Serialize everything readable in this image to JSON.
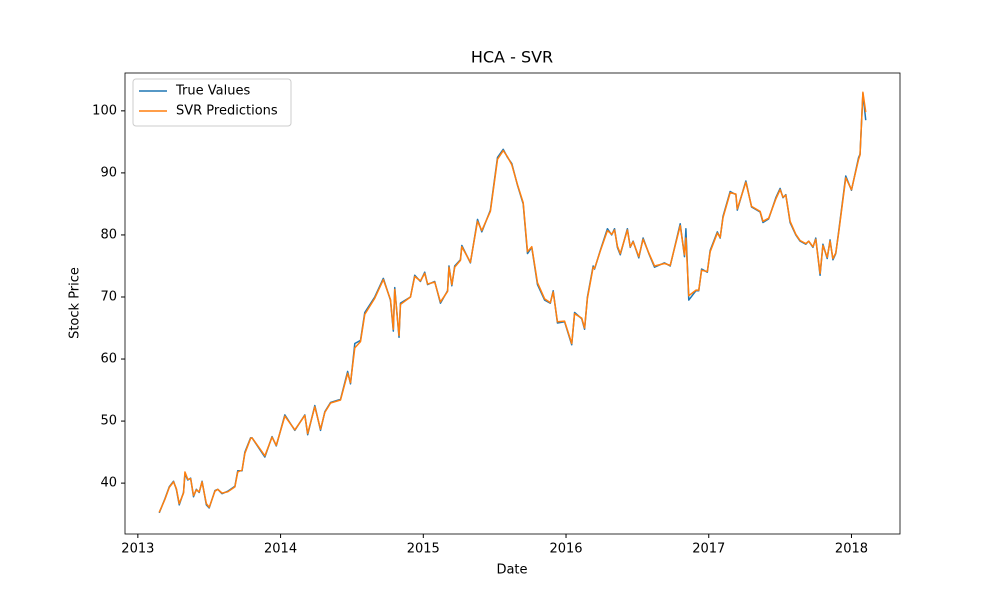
{
  "chart_data": {
    "type": "line",
    "title": "HCA - SVR",
    "x_label": "Date",
    "y_label": "Stock Price",
    "x": [
      2013.15,
      2013.19,
      2013.22,
      2013.25,
      2013.27,
      2013.29,
      2013.32,
      2013.33,
      2013.35,
      2013.37,
      2013.39,
      2013.41,
      2013.43,
      2013.45,
      2013.48,
      2013.5,
      2013.54,
      2013.56,
      2013.59,
      2013.63,
      2013.68,
      2013.7,
      2013.73,
      2013.75,
      2013.79,
      2013.8,
      2013.89,
      2013.94,
      2013.97,
      2014.03,
      2014.1,
      2014.17,
      2014.19,
      2014.24,
      2014.28,
      2014.31,
      2014.35,
      2014.42,
      2014.47,
      2014.49,
      2014.52,
      2014.56,
      2014.59,
      2014.66,
      2014.72,
      2014.77,
      2014.79,
      2014.8,
      2014.83,
      2014.84,
      2014.91,
      2014.94,
      2014.98,
      2015.01,
      2015.03,
      2015.08,
      2015.12,
      2015.17,
      2015.18,
      2015.2,
      2015.22,
      2015.26,
      2015.27,
      2015.33,
      2015.38,
      2015.41,
      2015.47,
      2015.52,
      2015.56,
      2015.59,
      2015.62,
      2015.66,
      2015.7,
      2015.73,
      2015.76,
      2015.8,
      2015.85,
      2015.89,
      2015.91,
      2015.94,
      2015.99,
      2016.04,
      2016.06,
      2016.11,
      2016.13,
      2016.15,
      2016.19,
      2016.2,
      2016.24,
      2016.29,
      2016.32,
      2016.34,
      2016.36,
      2016.38,
      2016.43,
      2016.45,
      2016.47,
      2016.51,
      2016.54,
      2016.58,
      2016.62,
      2016.69,
      2016.73,
      2016.8,
      2016.83,
      2016.84,
      2016.86,
      2016.91,
      2016.93,
      2016.95,
      2016.99,
      2017.01,
      2017.06,
      2017.08,
      2017.1,
      2017.15,
      2017.19,
      2017.2,
      2017.26,
      2017.3,
      2017.36,
      2017.38,
      2017.42,
      2017.47,
      2017.5,
      2017.52,
      2017.54,
      2017.57,
      2017.61,
      2017.64,
      2017.68,
      2017.7,
      2017.73,
      2017.75,
      2017.78,
      2017.8,
      2017.83,
      2017.85,
      2017.87,
      2017.89,
      2017.91,
      2017.96,
      2018.0,
      2018.05,
      2018.06,
      2018.08,
      2018.1
    ],
    "series": [
      {
        "name": "True Values",
        "color": "#1f77b4",
        "values": [
          35.2,
          37.5,
          39.4,
          40.3,
          39,
          36.5,
          38.5,
          41.5,
          40.5,
          40.8,
          37.8,
          39,
          38.5,
          40.3,
          36.5,
          36,
          38.8,
          39,
          38.3,
          38.7,
          39.5,
          42,
          42,
          45,
          47.3,
          47.3,
          44.2,
          47.5,
          46,
          51,
          48.5,
          51,
          47.8,
          52.5,
          48.5,
          51.5,
          53,
          53.5,
          58,
          56,
          62.5,
          63,
          67.5,
          70,
          73,
          69.5,
          64.5,
          71.5,
          63.5,
          69,
          70,
          73.5,
          72.5,
          74,
          72,
          72.5,
          69,
          71,
          75,
          71.8,
          75,
          76,
          78.3,
          75.5,
          82.5,
          80.5,
          84,
          92.5,
          93.8,
          92.5,
          91.5,
          88,
          85,
          77,
          78,
          72,
          69.5,
          69,
          71,
          65.8,
          66,
          62.3,
          67.5,
          66.5,
          64.8,
          70,
          75,
          74.5,
          77.5,
          81,
          80,
          81,
          78,
          76.8,
          81,
          78,
          79,
          76.3,
          79.5,
          77,
          74.8,
          75.5,
          75,
          81.8,
          76.5,
          81,
          69.5,
          71,
          71,
          74.5,
          74,
          77.5,
          80.5,
          79.5,
          83,
          87,
          86.5,
          84,
          88.7,
          84.5,
          83.7,
          82,
          82.6,
          86,
          87.5,
          86,
          86.5,
          82,
          80,
          79,
          78.5,
          79,
          78,
          79.5,
          73.5,
          78.5,
          76.2,
          79.2,
          76,
          77,
          80.5,
          89.5,
          87.2,
          92.5,
          93,
          102.8,
          98.5
        ]
      },
      {
        "name": "SVR Predictions",
        "color": "#ff7f0e",
        "values": [
          35.3,
          37.4,
          39.3,
          40.2,
          39.1,
          36.7,
          38.4,
          41.8,
          40.6,
          40.7,
          38,
          38.9,
          38.6,
          40.2,
          36.7,
          36.1,
          38.7,
          39,
          38.4,
          38.6,
          39.4,
          41.8,
          42.1,
          44.8,
          47.2,
          47.3,
          44.4,
          47.4,
          46.1,
          50.8,
          48.6,
          50.9,
          48,
          52.3,
          48.7,
          51.4,
          52.9,
          53.4,
          57.7,
          56.2,
          61.8,
          62.8,
          67.2,
          69.8,
          72.8,
          69.6,
          64.8,
          71.2,
          63.8,
          68.8,
          70,
          73.3,
          72.6,
          73.8,
          72.1,
          72.4,
          69.2,
          70.9,
          74.8,
          72,
          74.8,
          75.9,
          78.1,
          75.6,
          82.2,
          80.7,
          83.8,
          92.2,
          93.6,
          92.6,
          91.3,
          88.1,
          85.2,
          77.3,
          78.1,
          72.3,
          69.7,
          69.1,
          70.8,
          66,
          66.1,
          62.5,
          67.3,
          66.6,
          65,
          69.8,
          74.8,
          74.6,
          77.4,
          80.7,
          80.1,
          80.8,
          78.2,
          77,
          80.8,
          78.1,
          78.9,
          76.5,
          79.3,
          77.1,
          75,
          75.4,
          75.1,
          81.5,
          76.8,
          79.5,
          70.2,
          71.1,
          71.1,
          74.3,
          74.1,
          77.3,
          80.3,
          79.6,
          82.8,
          86.8,
          86.6,
          84.2,
          88.5,
          84.6,
          83.8,
          82.2,
          82.7,
          85.8,
          87.3,
          86.1,
          86.4,
          82.2,
          80.1,
          79.1,
          78.6,
          79,
          78.1,
          79.3,
          73.8,
          78.3,
          76.4,
          79,
          76.2,
          77.1,
          80.3,
          89.2,
          87.3,
          92.2,
          92.9,
          103,
          99.8
        ]
      }
    ],
    "xlim": [
      2012.91,
      2018.34
    ],
    "xticks": [
      2013,
      2014,
      2015,
      2016,
      2017,
      2018
    ],
    "ylim": [
      31.8,
      106.1
    ],
    "yticks": [
      40,
      50,
      60,
      70,
      80,
      90,
      100
    ],
    "legend": "upper left"
  }
}
